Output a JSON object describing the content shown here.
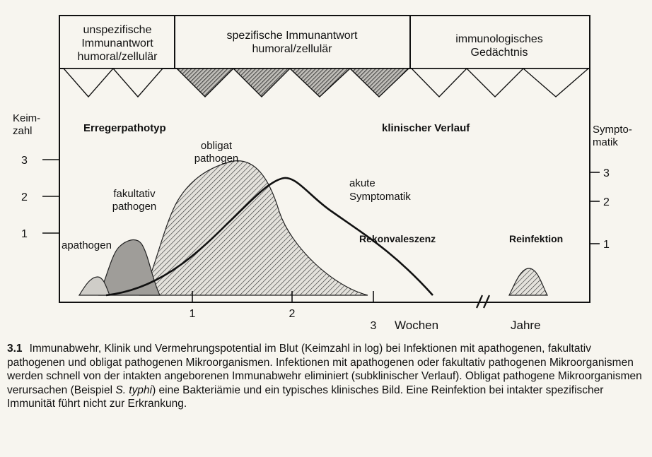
{
  "header": {
    "cells": [
      {
        "id": "unspecific",
        "lines": [
          "unspezifische",
          "Immunantwort",
          "humoral/zellulär"
        ]
      },
      {
        "id": "specific",
        "lines": [
          "spezifische Immunantwort",
          "humoral/zellulär"
        ]
      },
      {
        "id": "memory",
        "lines": [
          "immunologisches",
          "Gedächtnis"
        ]
      }
    ]
  },
  "axes": {
    "left_label": [
      "Keim-",
      "zahl"
    ],
    "right_label": [
      "Sympto-",
      "matik"
    ],
    "left_ticks": [
      "3",
      "2",
      "1"
    ],
    "right_ticks": [
      "3",
      "2",
      "1"
    ],
    "x_ticks": [
      "1",
      "2",
      "3"
    ],
    "x_unit": "Wochen",
    "x_unit_2": "Jahre"
  },
  "labels": {
    "pathotype_title": "Erregerpathotyp",
    "clinical_title": "klinischer Verlauf",
    "obligat": [
      "obligat",
      "pathogen"
    ],
    "fakultativ": [
      "fakultativ",
      "pathogen"
    ],
    "apathogen": "apathogen",
    "acute": [
      "akute",
      "Symptomatik"
    ],
    "rekonvaleszenz": "Rekonvaleszenz",
    "reinfektion": "Reinfektion"
  },
  "caption": {
    "number": "3.1",
    "text_before_italic": "Immunabwehr, Klinik und Vermehrungspotential im Blut (Keimzahl in log) bei Infektionen mit apathogenen, fakultativ pathogenen und obligat pathogenen Mikroorganismen. Infektionen mit apathogenen oder fakultativ pathogenen Mikroorganismen werden schnell von der intakten angeborenen Immunabwehr eliminiert (subklinischer Verlauf). Obligat pathogene Mikroorganismen verursachen (Beispiel ",
    "italic": "S. typhi",
    "text_after_italic": ") eine Bakteriämie und ein typisches klinisches Bild. Eine Reinfektion bei intakter spezifischer Immunität führt nicht zur Erkrankung."
  }
}
